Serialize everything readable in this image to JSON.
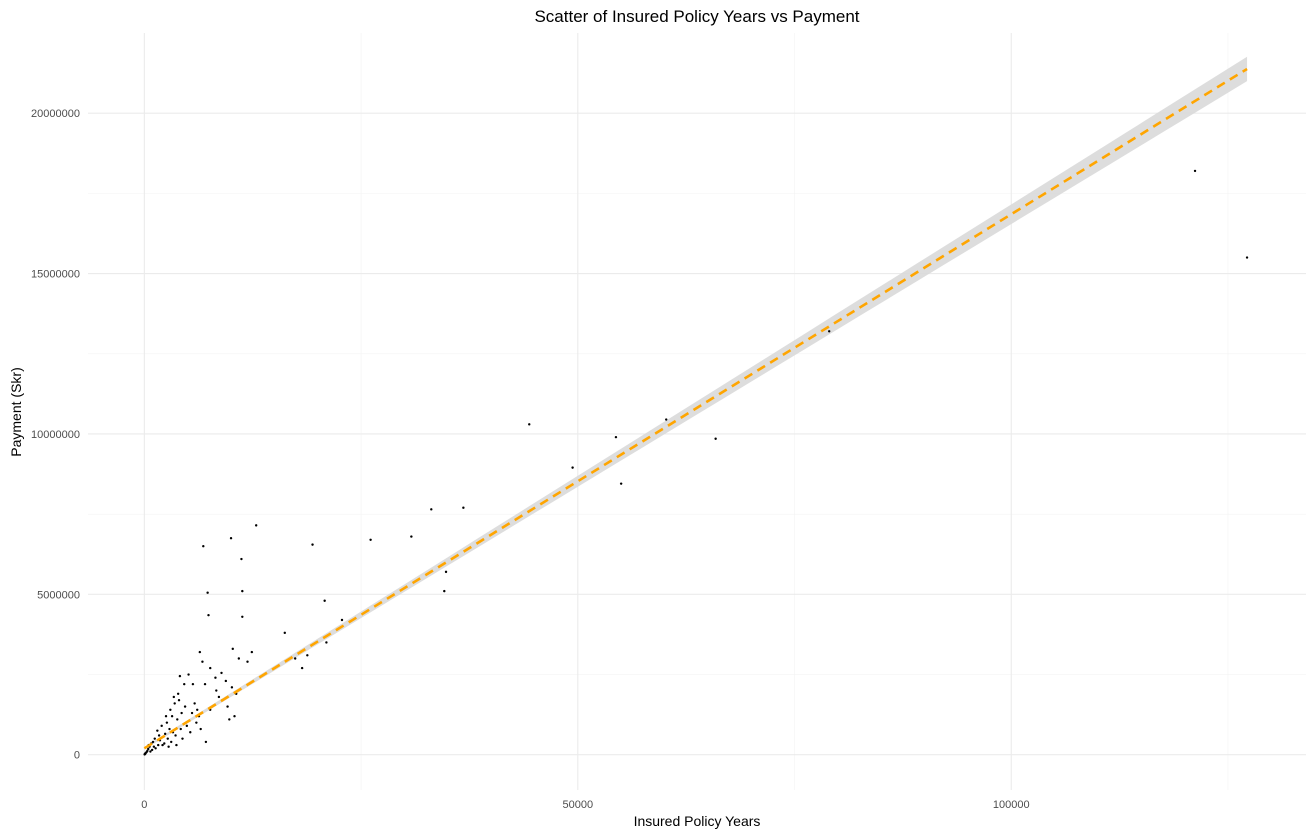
{
  "chart_data": {
    "type": "scatter",
    "title": "Scatter of Insured Policy Years vs Payment",
    "xlabel": "Insured Policy Years",
    "ylabel": "Payment (Skr)",
    "xlim": [
      -6500,
      134000
    ],
    "ylim": [
      -1100000,
      22500000
    ],
    "x_ticks": [
      0,
      50000,
      100000
    ],
    "x_tick_labels": [
      "0",
      "50000",
      "100000"
    ],
    "x_minor_ticks": [
      25000,
      75000,
      125000
    ],
    "y_ticks": [
      0,
      5000000,
      10000000,
      15000000,
      20000000
    ],
    "y_tick_labels": [
      "0",
      "5000000",
      "10000000",
      "15000000",
      "20000000"
    ],
    "y_minor_ticks": [
      2500000,
      7500000,
      12500000,
      17500000
    ],
    "grid": true,
    "point_color": "#000000",
    "fit_line": {
      "style": "dashed",
      "color": "#ffa500",
      "band_color": "#d9d9d9",
      "intercept": 200000,
      "slope": 166.5,
      "x_range": [
        0,
        127200
      ],
      "band_halfwidth_start": 35000,
      "band_halfwidth_end": 380000
    },
    "points": [
      [
        127200,
        15500000
      ],
      [
        121200,
        18200000
      ],
      [
        79000,
        13200000
      ],
      [
        65900,
        9850000
      ],
      [
        60200,
        10450000
      ],
      [
        55000,
        8450000
      ],
      [
        54400,
        9900000
      ],
      [
        49400,
        8950000
      ],
      [
        44400,
        10300000
      ],
      [
        36800,
        7700000
      ],
      [
        33100,
        7650000
      ],
      [
        34800,
        5700000
      ],
      [
        34600,
        5100000
      ],
      [
        30800,
        6800000
      ],
      [
        26100,
        6700000
      ],
      [
        22800,
        4200000
      ],
      [
        20800,
        4800000
      ],
      [
        21000,
        3500000
      ],
      [
        19400,
        6550000
      ],
      [
        18800,
        3100000
      ],
      [
        18200,
        2700000
      ],
      [
        17400,
        3000000
      ],
      [
        16200,
        3800000
      ],
      [
        12900,
        7150000
      ],
      [
        12400,
        3200000
      ],
      [
        11900,
        2900000
      ],
      [
        11300,
        4300000
      ],
      [
        10900,
        3000000
      ],
      [
        10000,
        6750000
      ],
      [
        10200,
        3300000
      ],
      [
        11200,
        6100000
      ],
      [
        11300,
        5100000
      ],
      [
        6800,
        6500000
      ],
      [
        7300,
        5050000
      ],
      [
        7400,
        4350000
      ],
      [
        6400,
        3200000
      ],
      [
        6700,
        2900000
      ],
      [
        7000,
        2200000
      ],
      [
        7600,
        2700000
      ],
      [
        8200,
        2400000
      ],
      [
        8900,
        2550000
      ],
      [
        9400,
        2300000
      ],
      [
        10100,
        2100000
      ],
      [
        10600,
        1900000
      ],
      [
        9600,
        1500000
      ],
      [
        10400,
        1200000
      ],
      [
        9000,
        1700000
      ],
      [
        8300,
        2000000
      ],
      [
        5100,
        2500000
      ],
      [
        5600,
        2200000
      ],
      [
        4600,
        2200000
      ],
      [
        4100,
        2450000
      ],
      [
        3400,
        1800000
      ],
      [
        3900,
        1900000
      ],
      [
        5800,
        1600000
      ],
      [
        6300,
        1200000
      ],
      [
        7100,
        400000
      ],
      [
        7600,
        1400000
      ],
      [
        4700,
        1500000
      ],
      [
        4300,
        1300000
      ],
      [
        3800,
        1100000
      ],
      [
        3200,
        1200000
      ],
      [
        2600,
        1000000
      ],
      [
        2900,
        800000
      ],
      [
        3300,
        700000
      ],
      [
        2400,
        650000
      ],
      [
        2000,
        900000
      ],
      [
        1700,
        600000
      ],
      [
        1500,
        750000
      ],
      [
        1200,
        500000
      ],
      [
        1000,
        400000
      ],
      [
        800,
        350000
      ],
      [
        600,
        250000
      ],
      [
        450,
        180000
      ],
      [
        350,
        120000
      ],
      [
        250,
        80000
      ],
      [
        150,
        50000
      ],
      [
        100,
        30000
      ],
      [
        60,
        20000
      ],
      [
        30,
        10000
      ],
      [
        2100,
        300000
      ],
      [
        2700,
        500000
      ],
      [
        3600,
        600000
      ],
      [
        4200,
        800000
      ],
      [
        4900,
        900000
      ],
      [
        5300,
        700000
      ],
      [
        6000,
        1000000
      ],
      [
        6500,
        800000
      ],
      [
        1800,
        450000
      ],
      [
        1300,
        200000
      ],
      [
        900,
        150000
      ],
      [
        2300,
        350000
      ],
      [
        3100,
        400000
      ],
      [
        3700,
        300000
      ],
      [
        4400,
        500000
      ],
      [
        2800,
        250000
      ],
      [
        1600,
        300000
      ],
      [
        1100,
        250000
      ],
      [
        700,
        100000
      ],
      [
        500,
        300000
      ],
      [
        2500,
        1200000
      ],
      [
        3000,
        1400000
      ],
      [
        3500,
        1600000
      ],
      [
        4000,
        1700000
      ],
      [
        5500,
        1300000
      ],
      [
        6100,
        1400000
      ],
      [
        8600,
        1800000
      ],
      [
        9800,
        1100000
      ]
    ]
  }
}
